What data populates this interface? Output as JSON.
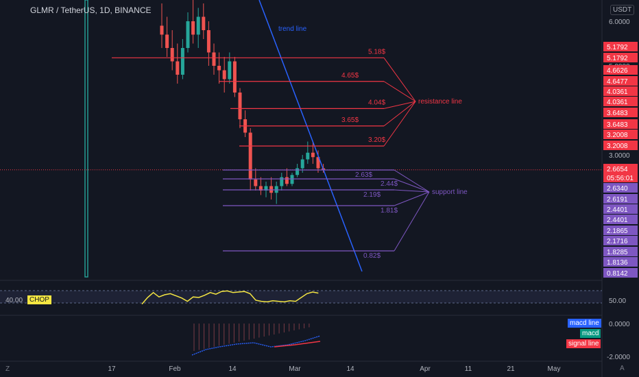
{
  "header": {
    "symbol": "GLMR / TetherUS, 1D, BINANCE",
    "currency": "USDT"
  },
  "chart_data": {
    "type": "candlestick",
    "annotations": {
      "trend_label": "trend line",
      "resistance_label": "resistance line",
      "support_label": "support line",
      "resistance_levels": [
        {
          "price": 5.18,
          "label": "5.18$"
        },
        {
          "price": 4.65,
          "label": "4.65$"
        },
        {
          "price": 4.04,
          "label": "4.04$"
        },
        {
          "price": 3.65,
          "label": "3.65$"
        },
        {
          "price": 3.2,
          "label": "3.20$"
        }
      ],
      "support_levels": [
        {
          "price": 2.63,
          "label": "2.63$"
        },
        {
          "price": 2.44,
          "label": "2.44$"
        },
        {
          "price": 2.19,
          "label": "2.19$"
        },
        {
          "price": 1.81,
          "label": "1.81$"
        },
        {
          "price": 0.82,
          "label": "0.82$"
        }
      ]
    },
    "y_ticks": [
      "6.0000",
      "5.0000",
      "3.0000"
    ],
    "price_labels": [
      {
        "text": "5.1792",
        "color": "#f23645",
        "price": 5.18
      },
      {
        "text": "5.1792",
        "color": "#f23645",
        "price": 5.04
      },
      {
        "text": "4.6626",
        "color": "#f23645",
        "price": 4.8
      },
      {
        "text": "4.6477",
        "color": "#f23645",
        "price": 4.63
      },
      {
        "text": "4.0361",
        "color": "#f23645",
        "price": 4.36
      },
      {
        "text": "4.0361",
        "color": "#f23645",
        "price": 4.12
      },
      {
        "text": "3.6483",
        "color": "#f23645",
        "price": 3.88
      },
      {
        "text": "3.6483",
        "color": "#f23645",
        "price": 3.64
      },
      {
        "text": "3.2008",
        "color": "#f23645",
        "price": 3.4
      },
      {
        "text": "3.2008",
        "color": "#f23645",
        "price": 3.17
      },
      {
        "text": "2.6654",
        "color": "#f23645",
        "price": 2.66
      },
      {
        "text": "05:56:01",
        "color": "#f23645",
        "price": 2.52
      },
      {
        "text": "2.6340",
        "color": "#7e57c2",
        "price": 2.34
      },
      {
        "text": "2.6191",
        "color": "#7e57c2",
        "price": 2.1
      },
      {
        "text": "2.4401",
        "color": "#7e57c2",
        "price": 1.87
      },
      {
        "text": "2.4401",
        "color": "#7e57c2",
        "price": 1.64
      },
      {
        "text": "2.1865",
        "color": "#7e57c2",
        "price": 1.4
      },
      {
        "text": "2.1716",
        "color": "#7e57c2",
        "price": 1.17
      },
      {
        "text": "1.8285",
        "color": "#7e57c2",
        "price": 0.94
      },
      {
        "text": "1.8136",
        "color": "#7e57c2",
        "price": 0.71
      },
      {
        "text": "0.8142",
        "color": "#7e57c2",
        "price": 0.47
      }
    ],
    "x_ticks": [
      "17",
      "Feb",
      "14",
      "Mar",
      "14",
      "Apr",
      "11",
      "21",
      "May"
    ],
    "candles": [
      [
        5.9,
        6.4,
        5.4,
        5.7
      ],
      [
        5.7,
        6.1,
        5.2,
        5.4
      ],
      [
        5.4,
        5.8,
        4.9,
        5.1
      ],
      [
        5.1,
        5.5,
        4.6,
        4.8
      ],
      [
        4.8,
        5.6,
        4.7,
        5.4
      ],
      [
        5.4,
        6.2,
        5.3,
        6.0
      ],
      [
        6.0,
        6.5,
        5.5,
        5.7
      ],
      [
        5.7,
        6.3,
        5.4,
        6.1
      ],
      [
        6.1,
        6.4,
        5.6,
        5.8
      ],
      [
        5.8,
        6.0,
        5.0,
        5.3
      ],
      [
        5.3,
        5.5,
        4.8,
        5.0
      ],
      [
        5.0,
        5.3,
        4.6,
        4.9
      ],
      [
        4.9,
        5.2,
        4.4,
        4.7
      ],
      [
        4.7,
        5.3,
        4.6,
        5.1
      ],
      [
        5.1,
        5.2,
        4.3,
        4.4
      ],
      [
        4.4,
        4.5,
        3.6,
        3.8
      ],
      [
        3.8,
        4.0,
        3.4,
        3.5
      ],
      [
        3.5,
        3.6,
        2.2,
        2.45
      ],
      [
        2.45,
        2.7,
        2.2,
        2.3
      ],
      [
        2.3,
        2.5,
        2.1,
        2.2
      ],
      [
        2.2,
        2.4,
        2.05,
        2.3
      ],
      [
        2.3,
        2.5,
        2.0,
        2.15
      ],
      [
        2.15,
        2.4,
        1.9,
        2.3
      ],
      [
        2.3,
        2.6,
        2.2,
        2.5
      ],
      [
        2.5,
        2.7,
        2.3,
        2.35
      ],
      [
        2.35,
        2.6,
        2.3,
        2.55
      ],
      [
        2.55,
        2.8,
        2.5,
        2.7
      ],
      [
        2.7,
        3.0,
        2.6,
        2.9
      ],
      [
        2.9,
        3.3,
        2.8,
        3.05
      ],
      [
        3.05,
        3.3,
        2.8,
        2.95
      ],
      [
        2.95,
        3.1,
        2.6,
        2.7
      ],
      [
        2.7,
        2.8,
        2.6,
        2.67
      ]
    ],
    "chop": {
      "label": "CHOP",
      "value_left": "40.00",
      "value_right": "50.00",
      "values": [
        33,
        45,
        54,
        46,
        50,
        52,
        48,
        44,
        38,
        46,
        45,
        49,
        54,
        51,
        56,
        57,
        54,
        55,
        56,
        52,
        40,
        38,
        37,
        39,
        38,
        37,
        39,
        38,
        45,
        52,
        55,
        53
      ]
    },
    "macd": {
      "labels": {
        "macd_line": "macd line",
        "macd": "macd",
        "signal": "signal line"
      },
      "ticks": [
        "0.0000",
        "-2.0000"
      ]
    }
  },
  "colors": {
    "up": "#26a69a",
    "down": "#ef5350",
    "resistance": "#f23645",
    "support": "#7e57c2",
    "trend": "#2962ff",
    "chop": "#f5e642"
  }
}
